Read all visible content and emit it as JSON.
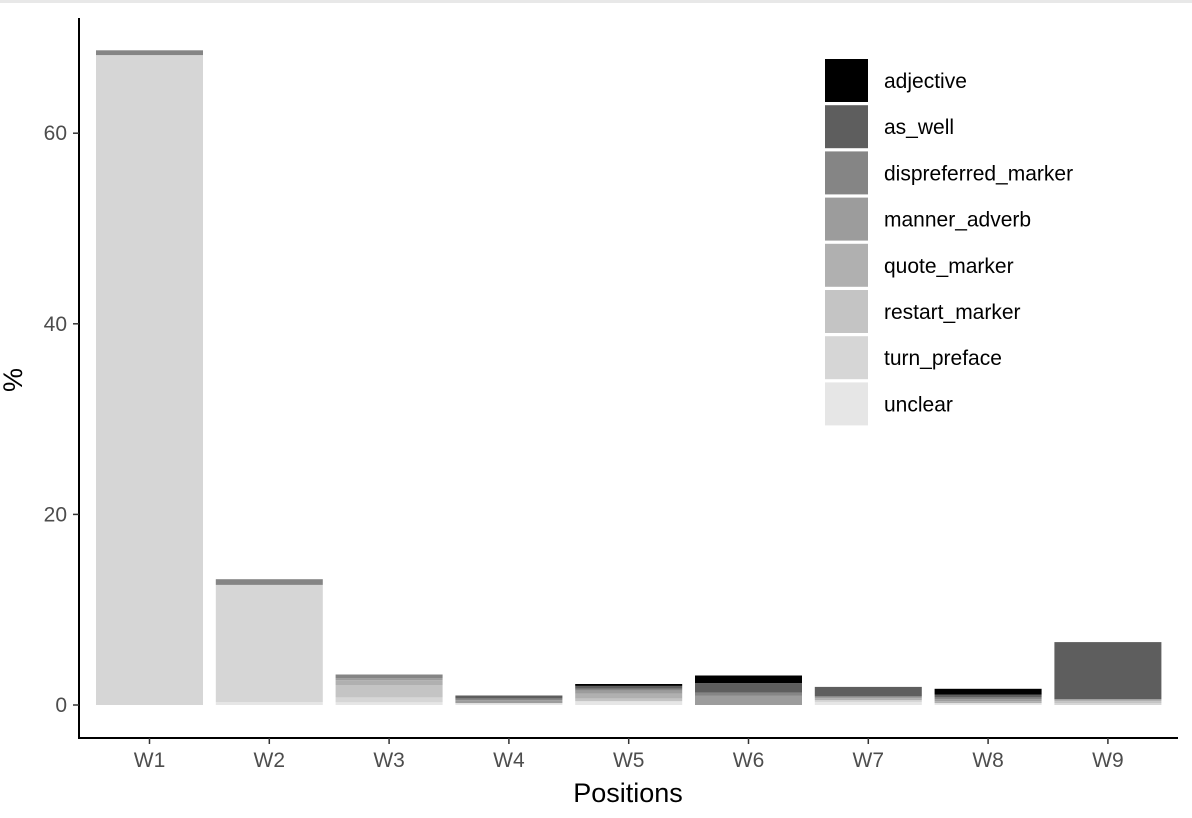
{
  "chart_data": {
    "type": "bar",
    "stacked": true,
    "categories": [
      "W1",
      "W2",
      "W3",
      "W4",
      "W5",
      "W6",
      "W7",
      "W8",
      "W9"
    ],
    "series": [
      {
        "name": "adjective",
        "color": "#000000",
        "values": [
          0,
          0,
          0,
          0,
          0.2,
          0.8,
          0,
          0.6,
          0
        ]
      },
      {
        "name": "as_well",
        "color": "#5e5e5e",
        "values": [
          0,
          0,
          0,
          0.3,
          0.3,
          1.0,
          1.0,
          0.3,
          6.0
        ]
      },
      {
        "name": "dispreferred_marker",
        "color": "#858585",
        "values": [
          0.5,
          0.6,
          0.4,
          0.2,
          0.2,
          0.3,
          0,
          0.2,
          0
        ]
      },
      {
        "name": "manner_adverb",
        "color": "#9c9c9c",
        "values": [
          0,
          0,
          0.2,
          0.3,
          0.3,
          1.0,
          0.2,
          0.2,
          0
        ]
      },
      {
        "name": "quote_marker",
        "color": "#b0b0b0",
        "values": [
          0,
          0,
          0.5,
          0,
          0.5,
          0,
          0.2,
          0.2,
          0.2
        ]
      },
      {
        "name": "restart_marker",
        "color": "#c4c4c4",
        "values": [
          0,
          0,
          1.3,
          0,
          0.3,
          0,
          0,
          0,
          0.2
        ]
      },
      {
        "name": "turn_preface",
        "color": "#d6d6d6",
        "values": [
          68.2,
          12.3,
          0.5,
          0,
          0,
          0,
          0.2,
          0,
          0.2
        ]
      },
      {
        "name": "unclear",
        "color": "#e6e6e6",
        "values": [
          0,
          0.3,
          0.3,
          0.2,
          0.4,
          0,
          0.3,
          0.2,
          0
        ]
      }
    ],
    "xlabel": "Positions",
    "ylabel": "%",
    "yticks": [
      0,
      20,
      40,
      60
    ],
    "ylim": [
      0,
      70
    ],
    "grid": false,
    "legend_position": "top-right"
  }
}
